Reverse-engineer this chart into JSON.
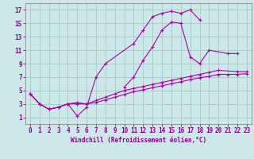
{
  "xlabel": "Windchill (Refroidissement éolien,°C)",
  "bg_color": "#cce8e8",
  "grid_color": "#aacccc",
  "line_color": "#aa00aa",
  "xlim": [
    -0.5,
    23.5
  ],
  "ylim": [
    0,
    18
  ],
  "xticks": [
    0,
    1,
    2,
    3,
    4,
    5,
    6,
    7,
    8,
    9,
    10,
    11,
    12,
    13,
    14,
    15,
    16,
    17,
    18,
    19,
    20,
    21,
    22,
    23
  ],
  "yticks": [
    1,
    3,
    5,
    7,
    9,
    11,
    13,
    15,
    17
  ],
  "line1_x": [
    0,
    1,
    2,
    3,
    4,
    5,
    6,
    7,
    8,
    11,
    12,
    13,
    14,
    15,
    16,
    17,
    18
  ],
  "line1_y": [
    4.5,
    3.0,
    2.2,
    2.5,
    3.0,
    1.2,
    2.5,
    7.0,
    9.0,
    12.0,
    14.0,
    16.0,
    16.5,
    16.8,
    16.5,
    17.0,
    15.5
  ],
  "line2_x": [
    10,
    11,
    12,
    13,
    14,
    15,
    16,
    17,
    18,
    19,
    21,
    22
  ],
  "line2_y": [
    5.5,
    7.0,
    9.5,
    11.5,
    14.0,
    15.2,
    15.0,
    10.0,
    9.0,
    11.0,
    10.5,
    10.5
  ],
  "line3_x": [
    0,
    1,
    2,
    3,
    4,
    5,
    6,
    7,
    8,
    9,
    10,
    11,
    12,
    13,
    14,
    15,
    16,
    17,
    18,
    19,
    20,
    22,
    23
  ],
  "line3_y": [
    4.5,
    3.0,
    2.2,
    2.5,
    3.0,
    3.2,
    3.0,
    3.5,
    4.0,
    4.5,
    5.0,
    5.3,
    5.6,
    5.9,
    6.2,
    6.5,
    6.8,
    7.1,
    7.4,
    7.7,
    8.0,
    7.8,
    7.8
  ],
  "line4_x": [
    0,
    1,
    2,
    3,
    4,
    5,
    6,
    7,
    8,
    9,
    10,
    11,
    12,
    13,
    14,
    15,
    16,
    17,
    18,
    19,
    20,
    21,
    22,
    23
  ],
  "line4_y": [
    4.5,
    3.0,
    2.2,
    2.5,
    3.0,
    3.0,
    3.0,
    3.2,
    3.6,
    4.0,
    4.4,
    4.8,
    5.1,
    5.4,
    5.7,
    6.0,
    6.3,
    6.6,
    6.9,
    7.1,
    7.4,
    7.4,
    7.4,
    7.5
  ]
}
